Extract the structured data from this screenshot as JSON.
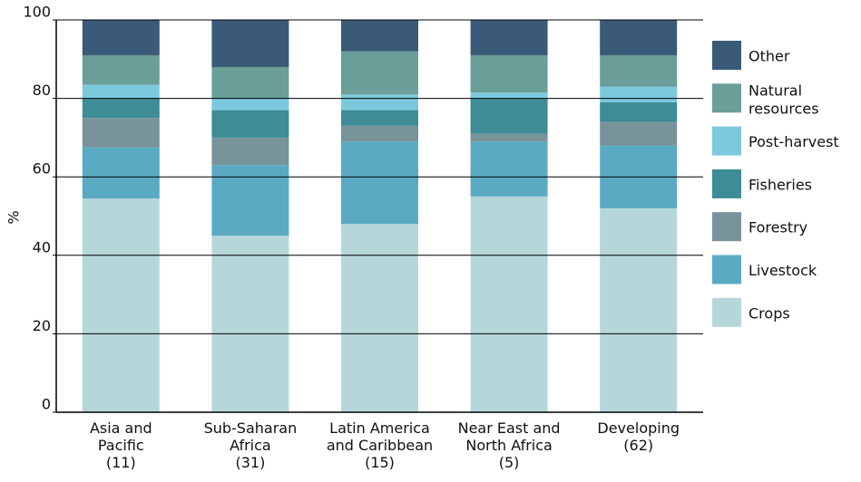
{
  "chart_data": {
    "type": "stacked-bar",
    "y_label": "%",
    "categories": [
      "Asia and\nPacific\n(11)",
      "Sub-Saharan\nAfrica\n(31)",
      "Latin America\nand Caribbean\n(15)",
      "Near East and\nNorth Africa\n(5)",
      "Developing\n(62)"
    ],
    "series": [
      {
        "name": "Crops",
        "color": "#b5d7da",
        "values": [
          54.5,
          45,
          48,
          55,
          52
        ]
      },
      {
        "name": "Livestock",
        "color": "#5aaac4",
        "values": [
          13,
          18,
          21,
          14,
          16
        ]
      },
      {
        "name": "Forestry",
        "color": "#78939a",
        "values": [
          7.5,
          7,
          4,
          2,
          6
        ]
      },
      {
        "name": "Fisheries",
        "color": "#3d8c96",
        "values": [
          5,
          7,
          4,
          9,
          5
        ]
      },
      {
        "name": "Post-harvest",
        "color": "#7cc9de",
        "values": [
          3.5,
          3,
          4,
          1.5,
          4
        ]
      },
      {
        "name": "Natural\nresources",
        "color": "#6a9e98",
        "values": [
          7.5,
          8,
          11,
          9.5,
          8
        ]
      },
      {
        "name": "Other",
        "color": "#3a5a78",
        "values": [
          9,
          12,
          8,
          9,
          9
        ]
      }
    ],
    "ylim": [
      0,
      100
    ],
    "yticks": [
      0,
      20,
      40,
      60,
      80,
      100
    ],
    "grid": true,
    "legend": "right"
  }
}
